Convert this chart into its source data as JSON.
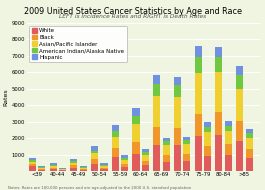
{
  "title": "2009 United States Cancer Statistics by Age and Race",
  "subtitle": "LEFT is Incidence Rates and RIGHT is Death Rates",
  "note": "Notes: Rates are 100,000 persons and are age-adjusted to the 2000 U.S. standard population",
  "ylabel": "Rates",
  "age_groups": [
    "<39",
    "40-44",
    "45-49",
    "50-54",
    "55-59",
    "60-64",
    "65-69",
    "70-74",
    "75-79",
    "80-84",
    ">85"
  ],
  "races": [
    "White",
    "Black",
    "Asian/Pacific Islander",
    "American Indian/Alaska Native",
    "Hispanic"
  ],
  "colors": [
    "#e05c5c",
    "#f0962a",
    "#f0d030",
    "#70c840",
    "#7090e0"
  ],
  "incidence": {
    "White": [
      300,
      120,
      200,
      450,
      850,
      1050,
      1600,
      1600,
      2100,
      2200,
      1850
    ],
    "Black": [
      120,
      80,
      150,
      280,
      550,
      700,
      1050,
      1000,
      1350,
      1400,
      1200
    ],
    "Asian/Pacific Islander": [
      150,
      100,
      150,
      350,
      650,
      1100,
      1900,
      1900,
      2500,
      2400,
      1950
    ],
    "American Indian/Alaska Native": [
      80,
      80,
      100,
      150,
      350,
      500,
      750,
      750,
      1000,
      900,
      800
    ],
    "Hispanic": [
      150,
      120,
      150,
      270,
      400,
      450,
      550,
      450,
      650,
      600,
      550
    ]
  },
  "death": {
    "White": [
      80,
      40,
      70,
      120,
      250,
      350,
      550,
      600,
      900,
      1000,
      800
    ],
    "Black": [
      50,
      30,
      50,
      90,
      200,
      280,
      430,
      430,
      600,
      650,
      550
    ],
    "Asian/Pacific Islander": [
      60,
      40,
      60,
      110,
      230,
      370,
      580,
      580,
      850,
      780,
      680
    ],
    "American Indian/Alaska Native": [
      40,
      35,
      45,
      60,
      110,
      160,
      250,
      250,
      340,
      320,
      280
    ],
    "Hispanic": [
      70,
      60,
      70,
      110,
      160,
      170,
      210,
      200,
      290,
      280,
      240
    ]
  },
  "ylim": [
    0,
    9000
  ],
  "yticks": [
    1000,
    2000,
    3000,
    4000,
    5000,
    6000,
    7000,
    8000,
    9000
  ],
  "background_color": "#eff5e0",
  "grid_color": "#ffffff",
  "title_fontsize": 5.8,
  "subtitle_fontsize": 4.2,
  "note_fontsize": 2.8,
  "axis_fontsize": 4.5,
  "tick_fontsize": 3.8,
  "legend_fontsize": 4.0
}
